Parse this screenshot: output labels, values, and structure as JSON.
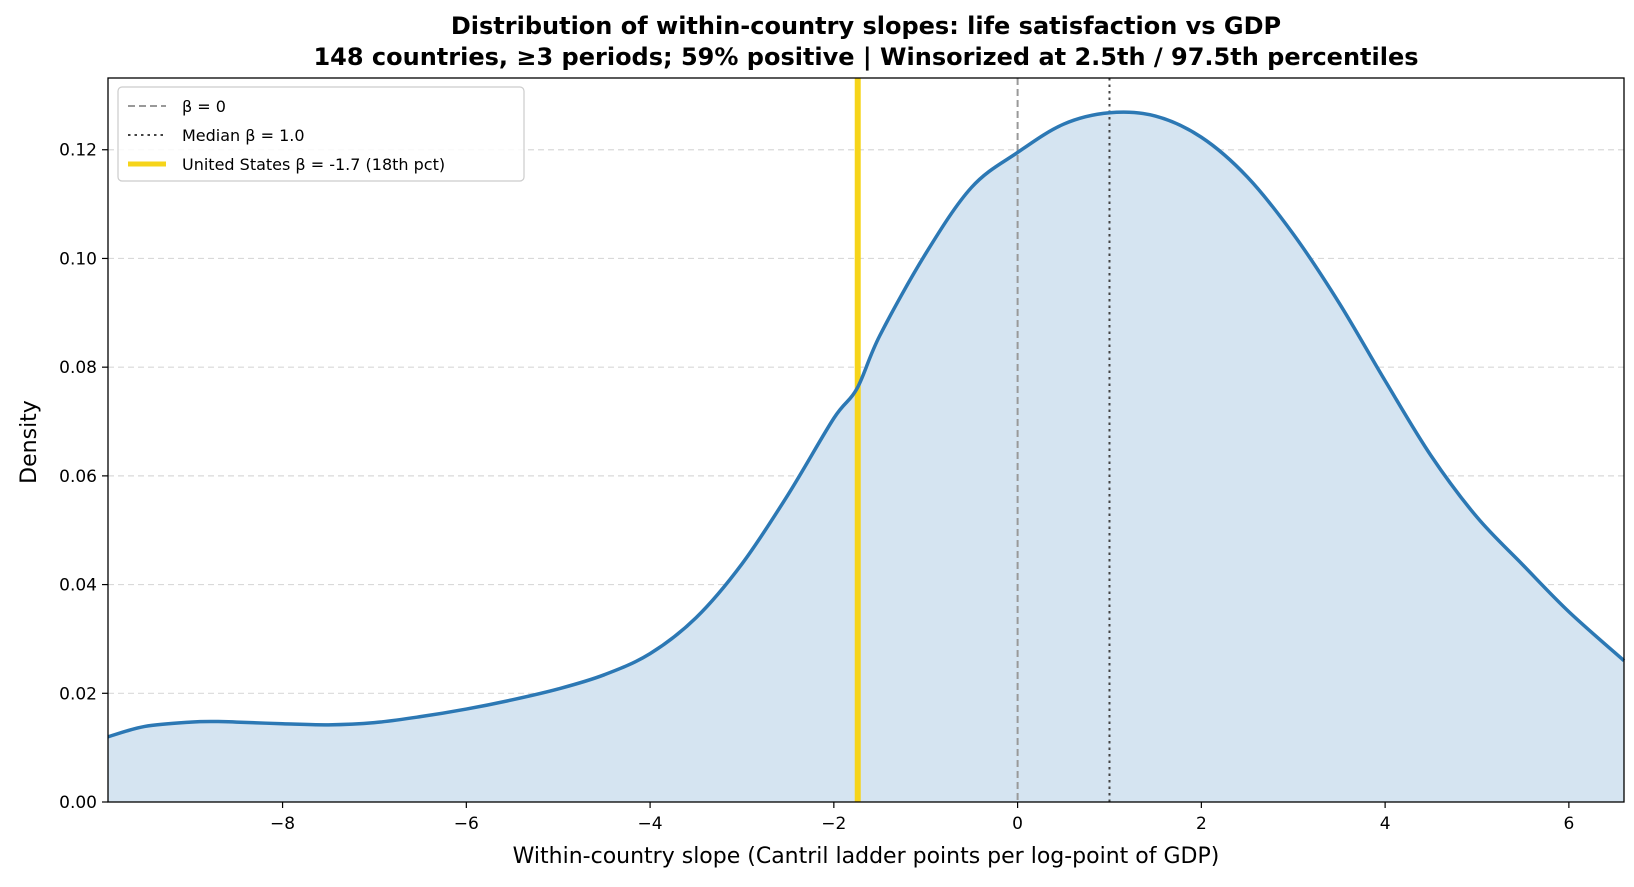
{
  "chart_data": {
    "type": "area",
    "title": "Distribution of within-country slopes: life satisfaction vs GDP",
    "subtitle": "148 countries, ≥3 periods; 59% positive  |  Winsorized at 2.5th / 97.5th percentiles",
    "xlabel": "Within-country slope (Cantril ladder points per log-point of GDP)",
    "ylabel": "Density",
    "xlim": [
      -9.9,
      6.6
    ],
    "ylim": [
      0,
      0.1332
    ],
    "x_ticks": [
      -8,
      -6,
      -4,
      -2,
      0,
      2,
      4,
      6
    ],
    "x_tick_labels": [
      "−8",
      "−6",
      "−4",
      "−2",
      "0",
      "2",
      "4",
      "6"
    ],
    "y_ticks": [
      0.0,
      0.02,
      0.04,
      0.06,
      0.08,
      0.1,
      0.12
    ],
    "y_tick_labels": [
      "0.00",
      "0.02",
      "0.04",
      "0.06",
      "0.08",
      "0.10",
      "0.12"
    ],
    "grid": "y, dashed",
    "series": [
      {
        "x": [
          -9.9,
          -9.5,
          -9,
          -8.7,
          -8.5,
          -8,
          -7.5,
          -7,
          -6.5,
          -6,
          -5.5,
          -5,
          -4.5,
          -4,
          -3.5,
          -3,
          -2.5,
          -2,
          -1.75,
          -1.5,
          -1,
          -0.5,
          0,
          0.5,
          1,
          1.5,
          2,
          2.5,
          3,
          3.5,
          4,
          4.5,
          5,
          5.5,
          6,
          6.6
        ],
        "y": [
          0.012,
          0.0139,
          0.0147,
          0.0148,
          0.0147,
          0.0144,
          0.0142,
          0.0146,
          0.0157,
          0.0171,
          0.0188,
          0.0208,
          0.0234,
          0.0273,
          0.0339,
          0.0438,
          0.0565,
          0.0706,
          0.076,
          0.0858,
          0.1009,
          0.1131,
          0.1195,
          0.1247,
          0.1268,
          0.1262,
          0.1223,
          0.115,
          0.1045,
          0.0918,
          0.0775,
          0.0637,
          0.0524,
          0.0436,
          0.035,
          0.026
        ]
      }
    ],
    "reference_lines": [
      {
        "label": "β = 0",
        "x": 0,
        "style": "dashed",
        "color": "#999999"
      },
      {
        "label": "Median  β = 1.0",
        "x": 1.0,
        "style": "dotted",
        "color": "#444444"
      },
      {
        "label": "United States  β = -1.7  (18th pct)",
        "x": -1.74,
        "style": "solid",
        "color": "#f6d41a"
      }
    ],
    "colors": {
      "curve": "#2c78b4",
      "fill": "#d5e4f1"
    },
    "legend_position": "top-left"
  }
}
